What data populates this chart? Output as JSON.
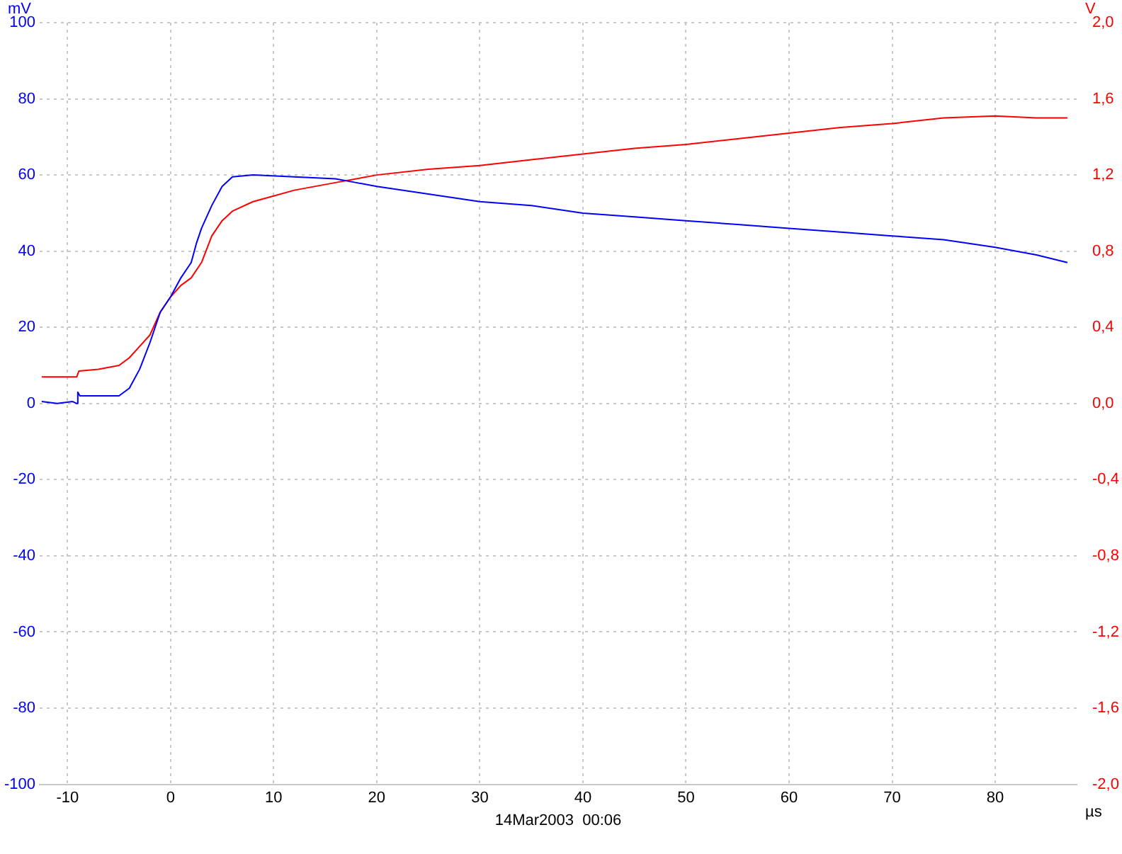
{
  "chart_data": {
    "type": "line",
    "xlabel": "µs",
    "ylabel": "mV",
    "y2label": "V",
    "annotations": [
      "14Mar2003  00:06"
    ],
    "xlim": [
      -12.7,
      87.9
    ],
    "xticks": [
      -10,
      0,
      10,
      20,
      30,
      40,
      50,
      60,
      70,
      80
    ],
    "ylim": [
      -100,
      100
    ],
    "yticks": [
      -100,
      -80,
      -60,
      -40,
      -20,
      0,
      20,
      40,
      60,
      80,
      100
    ],
    "y2lim": [
      -2,
      2
    ],
    "y2ticks": [
      {
        "value": -2,
        "label": "-2,0"
      },
      {
        "value": -1.6,
        "label": "-1,6"
      },
      {
        "value": -1.2,
        "label": "-1,2"
      },
      {
        "value": -0.8,
        "label": "-0,8"
      },
      {
        "value": -0.4,
        "label": "-0,4"
      },
      {
        "value": 0,
        "label": "0,0"
      },
      {
        "value": 0.4,
        "label": "0,4"
      },
      {
        "value": 0.8,
        "label": "0,8"
      },
      {
        "value": 1.2,
        "label": "1,2"
      },
      {
        "value": 1.6,
        "label": "1,6"
      },
      {
        "value": 2,
        "label": "2,0"
      }
    ],
    "grid": true,
    "line_style": "solid",
    "marker": "none",
    "series": [
      {
        "color": "#0000ff",
        "x": [
          -12.5,
          -11,
          -9.5,
          -9.1,
          -9,
          -8.8,
          -7,
          -5,
          -4,
          -3,
          -2,
          -1,
          0,
          1,
          2,
          2.5,
          3,
          4,
          5,
          6,
          8,
          12,
          16,
          18,
          20,
          25,
          30,
          35,
          40,
          45,
          50,
          55,
          60,
          65,
          70,
          75,
          80,
          84,
          87
        ],
        "values": [
          0.5,
          0,
          0.5,
          0,
          3,
          2,
          2,
          2,
          4,
          9,
          16,
          24,
          28,
          33,
          37,
          42,
          46,
          52,
          57,
          59.5,
          60,
          59.5,
          59,
          58,
          57,
          55,
          53,
          52,
          50,
          49,
          48,
          47,
          46,
          45,
          44,
          43,
          41,
          39,
          37
        ]
      },
      {
        "color": "#ff0000",
        "axis": "y2",
        "x": [
          -12.5,
          -11,
          -9.1,
          -8.9,
          -7,
          -5,
          -4,
          -3,
          -2,
          -1,
          0,
          1,
          2,
          3,
          4,
          5,
          6,
          8,
          10,
          12,
          16,
          20,
          25,
          30,
          35,
          40,
          45,
          50,
          55,
          60,
          65,
          70,
          75,
          80,
          84,
          87
        ],
        "values": [
          0.14,
          0.14,
          0.14,
          0.17,
          0.18,
          0.2,
          0.24,
          0.3,
          0.36,
          0.48,
          0.56,
          0.62,
          0.66,
          0.74,
          0.88,
          0.96,
          1.01,
          1.06,
          1.09,
          1.12,
          1.16,
          1.2,
          1.23,
          1.25,
          1.28,
          1.31,
          1.34,
          1.36,
          1.39,
          1.42,
          1.45,
          1.47,
          1.5,
          1.51,
          1.5,
          1.5
        ]
      }
    ]
  }
}
